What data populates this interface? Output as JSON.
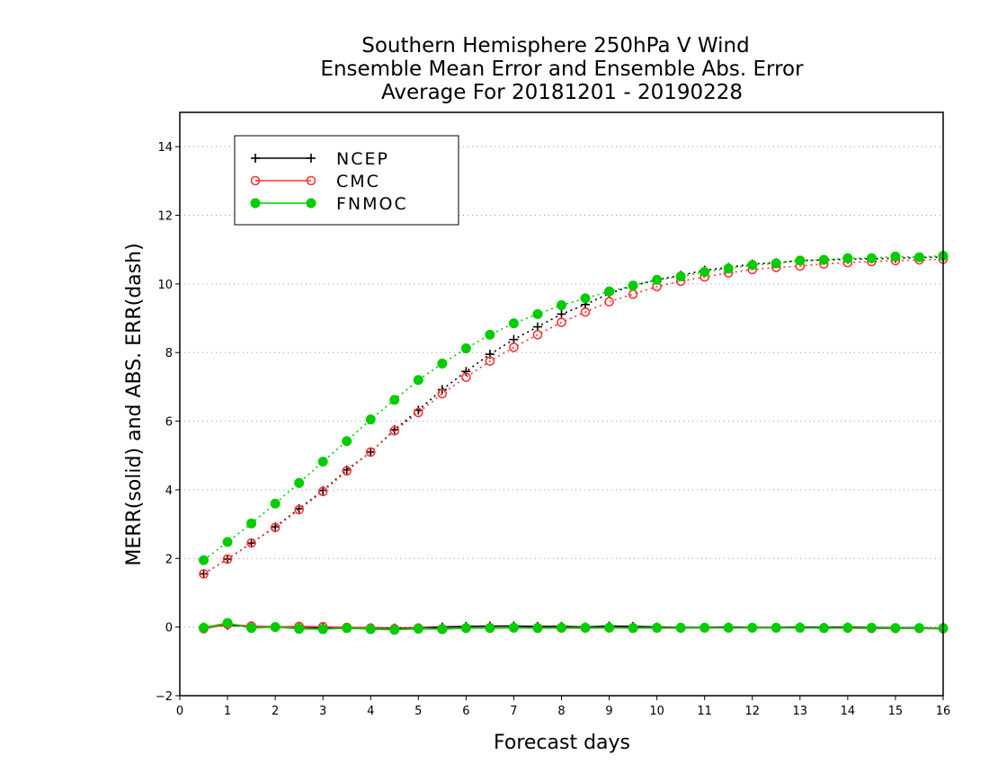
{
  "chart_data": {
    "type": "line",
    "title_lines": [
      "Southern Hemisphere 250hPa V Wind",
      "Ensemble Mean Error and Ensemble Abs. Error",
      "Average For 20181201 - 20190228"
    ],
    "xlabel": "Forecast days",
    "ylabel": "MERR(solid) and ABS. ERR(dash)",
    "xlim": [
      0,
      16
    ],
    "ylim": [
      -2,
      15
    ],
    "xticks": [
      0,
      1,
      2,
      3,
      4,
      5,
      6,
      7,
      8,
      9,
      10,
      11,
      12,
      13,
      14,
      15,
      16
    ],
    "yticks": [
      -2,
      0,
      2,
      4,
      6,
      8,
      10,
      12,
      14
    ],
    "grid": "horizontal dotted",
    "legend_position": "top-left",
    "x": [
      0.5,
      1,
      1.5,
      2,
      2.5,
      3,
      3.5,
      4,
      4.5,
      5,
      5.5,
      6,
      6.5,
      7,
      7.5,
      8,
      8.5,
      9,
      9.5,
      10,
      10.5,
      11,
      11.5,
      12,
      12.5,
      13,
      13.5,
      14,
      14.5,
      15,
      15.5,
      16
    ],
    "series": [
      {
        "name": "NCEP",
        "color": "#000000",
        "marker": "plus",
        "merr": [
          0.0,
          0.05,
          0.02,
          0.01,
          0.0,
          -0.02,
          -0.01,
          -0.02,
          -0.03,
          -0.02,
          0.0,
          0.02,
          0.03,
          0.03,
          0.02,
          0.02,
          0.0,
          0.03,
          0.02,
          0.0,
          -0.01,
          -0.01,
          0.0,
          -0.01,
          -0.01,
          0.0,
          -0.01,
          0.0,
          -0.01,
          -0.02,
          -0.02,
          -0.03
        ],
        "abs_err": [
          1.55,
          1.98,
          2.45,
          2.92,
          3.45,
          3.98,
          4.58,
          5.1,
          5.75,
          6.32,
          6.92,
          7.45,
          7.95,
          8.38,
          8.75,
          9.12,
          9.4,
          9.72,
          9.95,
          10.12,
          10.25,
          10.4,
          10.48,
          10.58,
          10.62,
          10.68,
          10.7,
          10.72,
          10.73,
          10.75,
          10.77,
          10.78
        ]
      },
      {
        "name": "CMC",
        "color": "#ff3333",
        "marker": "circle-open",
        "merr": [
          -0.05,
          0.08,
          0.03,
          0.0,
          0.02,
          0.01,
          -0.01,
          -0.03,
          -0.05,
          -0.03,
          -0.05,
          -0.03,
          -0.02,
          -0.02,
          -0.02,
          -0.03,
          -0.03,
          -0.02,
          -0.02,
          -0.03,
          -0.03,
          -0.02,
          -0.02,
          -0.02,
          -0.02,
          -0.02,
          -0.03,
          -0.03,
          -0.04,
          -0.04,
          -0.04,
          -0.05
        ],
        "abs_err": [
          1.55,
          1.98,
          2.45,
          2.9,
          3.42,
          3.95,
          4.55,
          5.1,
          5.72,
          6.25,
          6.8,
          7.28,
          7.75,
          8.15,
          8.52,
          8.88,
          9.18,
          9.48,
          9.7,
          9.92,
          10.08,
          10.2,
          10.32,
          10.42,
          10.48,
          10.52,
          10.58,
          10.62,
          10.65,
          10.68,
          10.7,
          10.72
        ]
      },
      {
        "name": "FNMOC",
        "color": "#00cc00",
        "marker": "circle-filled",
        "merr": [
          -0.02,
          0.12,
          -0.03,
          0.0,
          -0.05,
          -0.06,
          -0.03,
          -0.06,
          -0.08,
          -0.05,
          -0.06,
          -0.03,
          -0.03,
          -0.02,
          -0.03,
          -0.02,
          -0.02,
          -0.02,
          -0.03,
          -0.02,
          -0.02,
          -0.02,
          -0.02,
          -0.02,
          -0.02,
          -0.02,
          -0.03,
          -0.02,
          -0.02,
          -0.03,
          -0.03,
          -0.03
        ],
        "abs_err": [
          1.95,
          2.48,
          3.02,
          3.6,
          4.2,
          4.82,
          5.42,
          6.05,
          6.62,
          7.2,
          7.68,
          8.12,
          8.52,
          8.85,
          9.12,
          9.38,
          9.58,
          9.78,
          9.95,
          10.12,
          10.22,
          10.35,
          10.45,
          10.55,
          10.6,
          10.68,
          10.7,
          10.75,
          10.75,
          10.8,
          10.78,
          10.82
        ]
      }
    ]
  }
}
